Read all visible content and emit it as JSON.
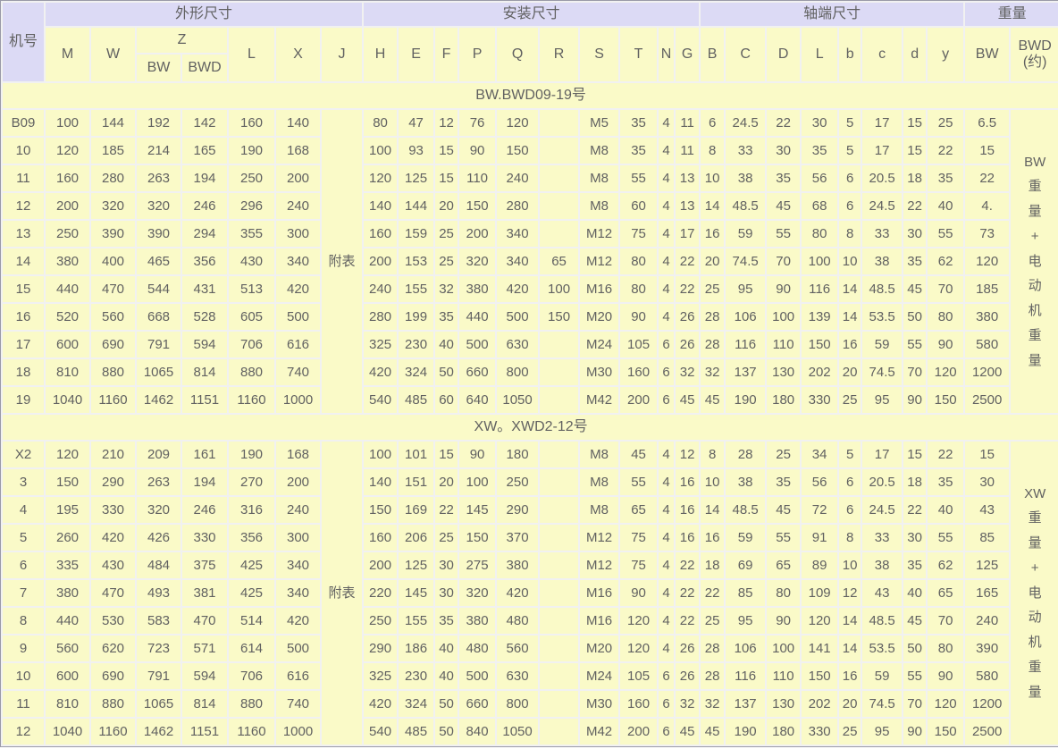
{
  "table": {
    "group_headers": {
      "outline": "外形尺寸",
      "mounting": "安装尺寸",
      "shaft": "轴端尺寸",
      "weight": "重量"
    },
    "col_headers": {
      "machine_no": "机号",
      "m": "M",
      "w": "W",
      "z": "Z",
      "z_bw": "BW",
      "z_bwd": "BWD",
      "l": "L",
      "x": "X",
      "j": "J",
      "h": "H",
      "e": "E",
      "f": "F",
      "p": "P",
      "q": "Q",
      "r": "R",
      "s": "S",
      "t": "T",
      "n": "N",
      "g": "G",
      "cap_b": "B",
      "cap_c": "C",
      "cap_d": "D",
      "cap_l": "L",
      "low_b": "b",
      "low_c": "c",
      "low_d": "d",
      "low_y": "y",
      "bw": "BW",
      "bwd_approx": "BWD\n(约)"
    },
    "sections": [
      {
        "title": "BW.BWD09-19号",
        "j_note": "附表",
        "weight_note": "BW\n重\n量\n+\n电\n动\n机\n重\n量",
        "rows": [
          [
            "B09",
            "100",
            "144",
            "192",
            "142",
            "160",
            "140",
            "80",
            "47",
            "12",
            "76",
            "120",
            "",
            "M5",
            "35",
            "4",
            "11",
            "6",
            "24.5",
            "22",
            "30",
            "5",
            "17",
            "15",
            "25",
            "6.5"
          ],
          [
            "10",
            "120",
            "185",
            "214",
            "165",
            "190",
            "168",
            "100",
            "93",
            "15",
            "90",
            "150",
            "",
            "M8",
            "35",
            "4",
            "11",
            "8",
            "33",
            "30",
            "35",
            "5",
            "17",
            "15",
            "22",
            "15"
          ],
          [
            "11",
            "160",
            "280",
            "263",
            "194",
            "250",
            "200",
            "120",
            "125",
            "15",
            "110",
            "240",
            "",
            "M8",
            "55",
            "4",
            "13",
            "10",
            "38",
            "35",
            "56",
            "6",
            "20.5",
            "18",
            "35",
            "22"
          ],
          [
            "12",
            "200",
            "320",
            "320",
            "246",
            "296",
            "240",
            "140",
            "144",
            "20",
            "150",
            "280",
            "",
            "M8",
            "60",
            "4",
            "13",
            "14",
            "48.5",
            "45",
            "68",
            "6",
            "24.5",
            "22",
            "40",
            "4."
          ],
          [
            "13",
            "250",
            "390",
            "390",
            "294",
            "355",
            "300",
            "160",
            "159",
            "25",
            "200",
            "340",
            "",
            "M12",
            "75",
            "4",
            "17",
            "16",
            "59",
            "55",
            "80",
            "8",
            "33",
            "30",
            "55",
            "73"
          ],
          [
            "14",
            "380",
            "400",
            "465",
            "356",
            "430",
            "340",
            "200",
            "153",
            "25",
            "320",
            "340",
            "65",
            "M12",
            "80",
            "4",
            "22",
            "20",
            "74.5",
            "70",
            "100",
            "10",
            "38",
            "35",
            "62",
            "120"
          ],
          [
            "15",
            "440",
            "470",
            "544",
            "431",
            "513",
            "420",
            "240",
            "155",
            "32",
            "380",
            "420",
            "100",
            "M16",
            "80",
            "4",
            "22",
            "25",
            "95",
            "90",
            "116",
            "14",
            "48.5",
            "45",
            "70",
            "185"
          ],
          [
            "16",
            "520",
            "560",
            "668",
            "528",
            "605",
            "500",
            "280",
            "199",
            "35",
            "440",
            "500",
            "150",
            "M20",
            "90",
            "4",
            "26",
            "28",
            "106",
            "100",
            "139",
            "14",
            "53.5",
            "50",
            "80",
            "380"
          ],
          [
            "17",
            "600",
            "690",
            "791",
            "594",
            "706",
            "616",
            "325",
            "230",
            "40",
            "500",
            "630",
            "",
            "M24",
            "105",
            "6",
            "26",
            "28",
            "116",
            "110",
            "150",
            "16",
            "59",
            "55",
            "90",
            "580"
          ],
          [
            "18",
            "810",
            "880",
            "1065",
            "814",
            "880",
            "740",
            "420",
            "324",
            "50",
            "660",
            "800",
            "",
            "M30",
            "160",
            "6",
            "32",
            "32",
            "137",
            "130",
            "202",
            "20",
            "74.5",
            "70",
            "120",
            "1200"
          ],
          [
            "19",
            "1040",
            "1160",
            "1462",
            "1151",
            "1160",
            "1000",
            "540",
            "485",
            "60",
            "640",
            "1050",
            "",
            "M42",
            "200",
            "6",
            "45",
            "45",
            "190",
            "180",
            "330",
            "25",
            "95",
            "90",
            "150",
            "2500"
          ]
        ]
      },
      {
        "title": "XW。XWD2-12号",
        "j_note": "附表",
        "weight_note": "XW\n重\n量\n+\n电\n动\n机\n重\n量",
        "rows": [
          [
            "X2",
            "120",
            "210",
            "209",
            "161",
            "190",
            "168",
            "100",
            "101",
            "15",
            "90",
            "180",
            "",
            "M8",
            "45",
            "4",
            "12",
            "8",
            "28",
            "25",
            "34",
            "5",
            "17",
            "15",
            "22",
            "15"
          ],
          [
            "3",
            "150",
            "290",
            "263",
            "194",
            "270",
            "200",
            "140",
            "151",
            "20",
            "100",
            "250",
            "",
            "M8",
            "55",
            "4",
            "16",
            "10",
            "38",
            "35",
            "56",
            "6",
            "20.5",
            "18",
            "35",
            "30"
          ],
          [
            "4",
            "195",
            "330",
            "320",
            "246",
            "316",
            "240",
            "150",
            "169",
            "22",
            "145",
            "290",
            "",
            "M8",
            "65",
            "4",
            "16",
            "14",
            "48.5",
            "45",
            "72",
            "6",
            "24.5",
            "22",
            "40",
            "43"
          ],
          [
            "5",
            "260",
            "420",
            "426",
            "330",
            "356",
            "300",
            "160",
            "206",
            "25",
            "150",
            "370",
            "",
            "M12",
            "75",
            "4",
            "16",
            "16",
            "59",
            "55",
            "91",
            "8",
            "33",
            "30",
            "55",
            "85"
          ],
          [
            "6",
            "335",
            "430",
            "484",
            "375",
            "425",
            "340",
            "200",
            "125",
            "30",
            "275",
            "380",
            "",
            "M12",
            "75",
            "4",
            "22",
            "18",
            "69",
            "65",
            "89",
            "10",
            "38",
            "35",
            "62",
            "125"
          ],
          [
            "7",
            "380",
            "470",
            "493",
            "381",
            "425",
            "340",
            "220",
            "145",
            "30",
            "320",
            "420",
            "",
            "M16",
            "90",
            "4",
            "22",
            "22",
            "85",
            "80",
            "109",
            "12",
            "43",
            "40",
            "65",
            "165"
          ],
          [
            "8",
            "440",
            "530",
            "583",
            "470",
            "514",
            "420",
            "250",
            "155",
            "35",
            "380",
            "480",
            "",
            "M16",
            "120",
            "4",
            "22",
            "25",
            "95",
            "90",
            "120",
            "14",
            "48.5",
            "45",
            "70",
            "240"
          ],
          [
            "9",
            "560",
            "620",
            "723",
            "571",
            "614",
            "500",
            "290",
            "186",
            "40",
            "480",
            "560",
            "",
            "M20",
            "120",
            "4",
            "26",
            "28",
            "106",
            "100",
            "141",
            "14",
            "53.5",
            "50",
            "80",
            "390"
          ],
          [
            "10",
            "600",
            "690",
            "791",
            "594",
            "706",
            "616",
            "325",
            "230",
            "40",
            "500",
            "630",
            "",
            "M24",
            "105",
            "6",
            "26",
            "28",
            "116",
            "110",
            "150",
            "16",
            "59",
            "55",
            "90",
            "580"
          ],
          [
            "11",
            "810",
            "880",
            "1065",
            "814",
            "880",
            "740",
            "420",
            "324",
            "50",
            "660",
            "800",
            "",
            "M30",
            "160",
            "6",
            "32",
            "32",
            "137",
            "130",
            "202",
            "20",
            "74.5",
            "70",
            "120",
            "1200"
          ],
          [
            "12",
            "1040",
            "1160",
            "1462",
            "1151",
            "1160",
            "1000",
            "540",
            "485",
            "50",
            "840",
            "1050",
            "",
            "M42",
            "200",
            "6",
            "45",
            "45",
            "190",
            "180",
            "330",
            "25",
            "95",
            "90",
            "150",
            "2500"
          ]
        ]
      }
    ],
    "colors": {
      "header_bg": "#dcdaf5",
      "cell_bg": "#fafac8",
      "text": "#616161",
      "outer_border": "#9a9aa8",
      "grid_gap": "#f1f1f1"
    }
  }
}
